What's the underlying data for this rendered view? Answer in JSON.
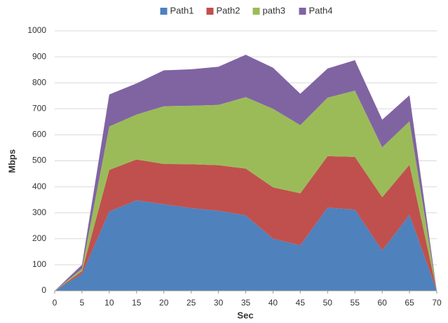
{
  "chart_data": {
    "type": "stacked_area",
    "x": [
      0,
      5,
      10,
      15,
      20,
      25,
      30,
      35,
      40,
      45,
      50,
      55,
      60,
      65,
      70
    ],
    "series": [
      {
        "name": "Path1",
        "color": "#4f81bd",
        "values": [
          0,
          65,
          305,
          348,
          333,
          318,
          308,
          290,
          200,
          175,
          320,
          312,
          155,
          292,
          0
        ]
      },
      {
        "name": "Path2",
        "color": "#c0504d",
        "values": [
          0,
          10,
          160,
          157,
          155,
          169,
          175,
          180,
          198,
          200,
          198,
          203,
          205,
          193,
          0
        ]
      },
      {
        "name": "path3",
        "color": "#9bbb59",
        "values": [
          0,
          10,
          167,
          173,
          222,
          225,
          232,
          275,
          302,
          262,
          225,
          255,
          192,
          167,
          0
        ]
      },
      {
        "name": "Path4",
        "color": "#8064a2",
        "values": [
          0,
          15,
          123,
          120,
          138,
          140,
          147,
          163,
          158,
          121,
          112,
          117,
          106,
          100,
          0
        ]
      }
    ],
    "xlabel": "Sec",
    "ylabel": "Mbps",
    "xlim": [
      0,
      70
    ],
    "xticks": [
      0,
      5,
      10,
      15,
      20,
      25,
      30,
      35,
      40,
      45,
      50,
      55,
      60,
      65,
      70
    ],
    "ylim": [
      0,
      1000
    ],
    "yticks": [
      0,
      100,
      200,
      300,
      400,
      500,
      600,
      700,
      800,
      900,
      1000
    ],
    "grid": true,
    "legend": "top"
  }
}
